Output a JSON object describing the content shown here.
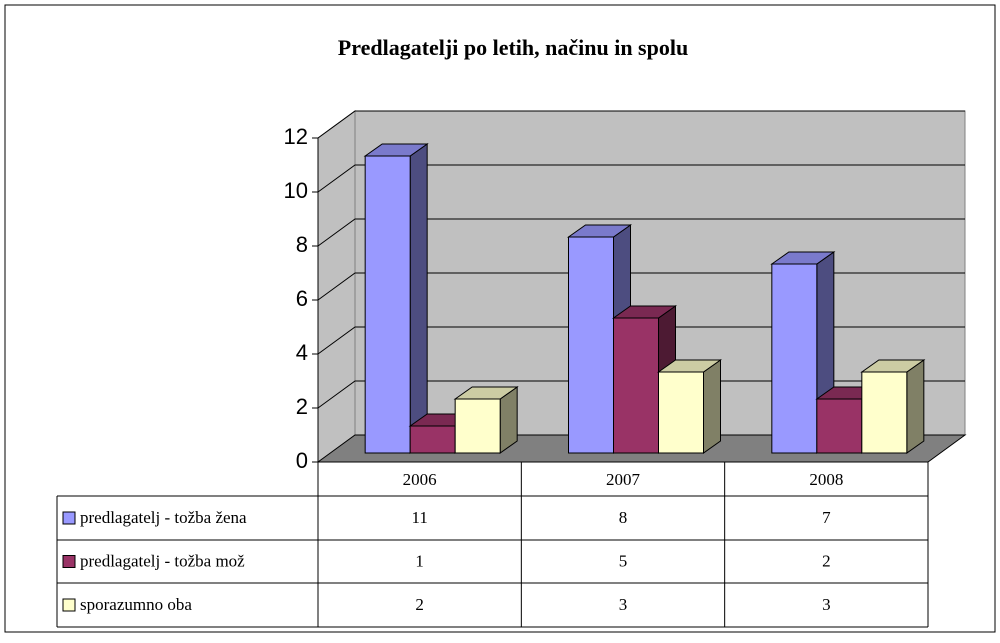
{
  "chart_data": {
    "type": "bar3d",
    "title": "Predlagatelji po letih, načinu in spolu",
    "categories": [
      "2006",
      "2007",
      "2008"
    ],
    "series": [
      {
        "name": "predlagatelj - tožba žena",
        "color": "#9999ff",
        "values": [
          11,
          8,
          7
        ]
      },
      {
        "name": "predlagatelj - tožba mož",
        "color": "#993366",
        "values": [
          1,
          5,
          2
        ]
      },
      {
        "name": "sporazumno oba",
        "color": "#ffffcc",
        "values": [
          2,
          3,
          3
        ]
      }
    ],
    "ylim": [
      0,
      12
    ],
    "yticks": [
      0,
      2,
      4,
      6,
      8,
      10,
      12
    ],
    "grid": true,
    "data_table": true
  }
}
